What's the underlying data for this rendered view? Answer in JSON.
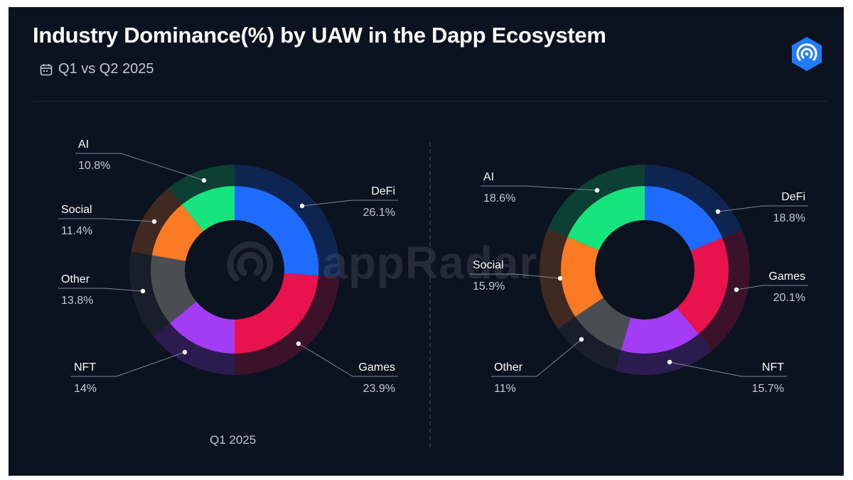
{
  "header": {
    "title": "Industry Dominance(%) by UAW in the Dapp Ecosystem",
    "subtitle": "Q1 vs Q2 2025"
  },
  "watermark": {
    "text": "DappRadar"
  },
  "icons": {
    "calendar": "calendar-icon",
    "brand": "dappradar-logo-icon"
  },
  "colors": {
    "background": "#0b1220",
    "DeFi": "#1f6bff",
    "Games": "#e8124c",
    "NFT": "#a23cf5",
    "Other": "#4a4d52",
    "Social": "#fb7a24",
    "AI": "#16e57d"
  },
  "chart_data": [
    {
      "type": "pie",
      "title": "",
      "caption": "Q1 2025",
      "slices": [
        {
          "label": "DeFi",
          "value": 26.1,
          "display": "26.1%"
        },
        {
          "label": "Games",
          "value": 23.9,
          "display": "23.9%"
        },
        {
          "label": "NFT",
          "value": 14,
          "display": "14%"
        },
        {
          "label": "Other",
          "value": 13.8,
          "display": "13.8%"
        },
        {
          "label": "Social",
          "value": 11.4,
          "display": "11.4%"
        },
        {
          "label": "AI",
          "value": 10.8,
          "display": "10.8%"
        }
      ]
    },
    {
      "type": "pie",
      "title": "",
      "caption": "",
      "slices": [
        {
          "label": "DeFi",
          "value": 18.8,
          "display": "18.8%"
        },
        {
          "label": "Games",
          "value": 20.1,
          "display": "20.1%"
        },
        {
          "label": "NFT",
          "value": 15.7,
          "display": "15.7%"
        },
        {
          "label": "Other",
          "value": 11,
          "display": "11%"
        },
        {
          "label": "Social",
          "value": 15.9,
          "display": "15.9%"
        },
        {
          "label": "AI",
          "value": 18.6,
          "display": "18.6%"
        }
      ]
    }
  ]
}
